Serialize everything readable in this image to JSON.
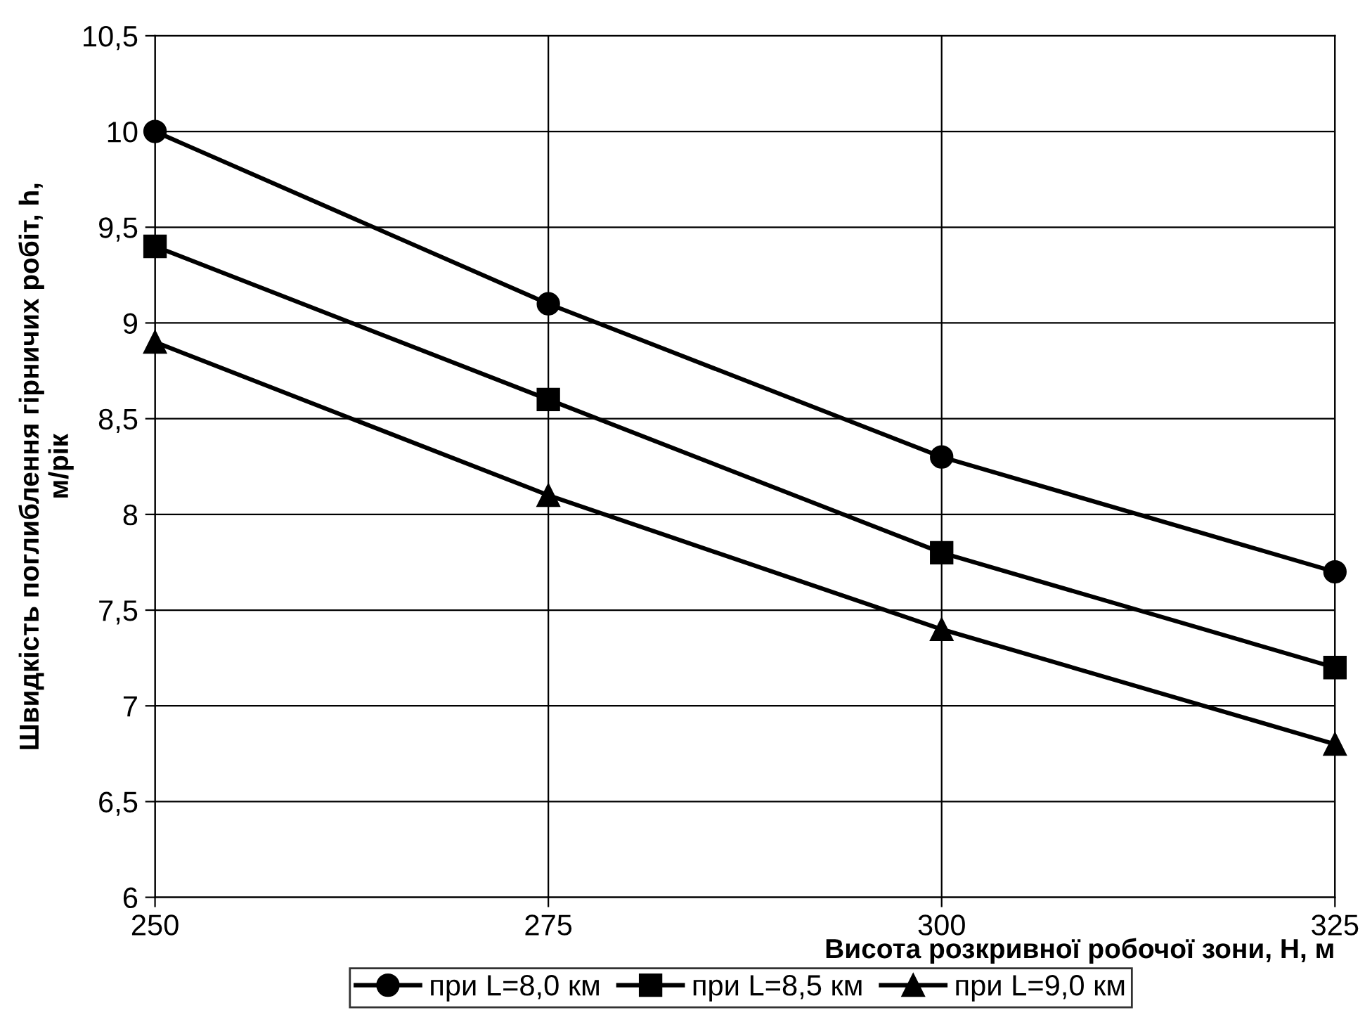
{
  "chart_data": {
    "type": "line",
    "xlabel": "Висота розкривної робочої зони, H, м",
    "ylabel": "Швидкість поглиблення гірничих робіт, h,\nм/рік",
    "x": [
      250,
      275,
      300,
      325
    ],
    "series": [
      {
        "name": "при L=8,0 км",
        "color": "#000000",
        "marker": "circle",
        "values": [
          10.0,
          9.1,
          8.3,
          7.7
        ]
      },
      {
        "name": "при L=8,5 км",
        "color": "#000000",
        "marker": "square",
        "values": [
          9.4,
          8.6,
          7.8,
          7.2
        ]
      },
      {
        "name": "при L=9,0 км",
        "color": "#000000",
        "marker": "triangle",
        "values": [
          8.9,
          8.1,
          7.4,
          6.8
        ]
      }
    ],
    "xlim": [
      250,
      325
    ],
    "xticks": [
      250,
      275,
      300,
      325
    ],
    "ylim": [
      6,
      10.5
    ],
    "yticks": [
      6,
      {
        "value": 6.5,
        "label": "6,5"
      },
      7,
      {
        "value": 7.5,
        "label": "7,5"
      },
      8,
      {
        "value": 8.5,
        "label": "8,5"
      },
      9,
      {
        "value": 9.5,
        "label": "9,5"
      },
      10,
      {
        "value": 10.5,
        "label": "10,5"
      }
    ],
    "grid": true,
    "legend": "bottom",
    "line_style": "solid"
  }
}
